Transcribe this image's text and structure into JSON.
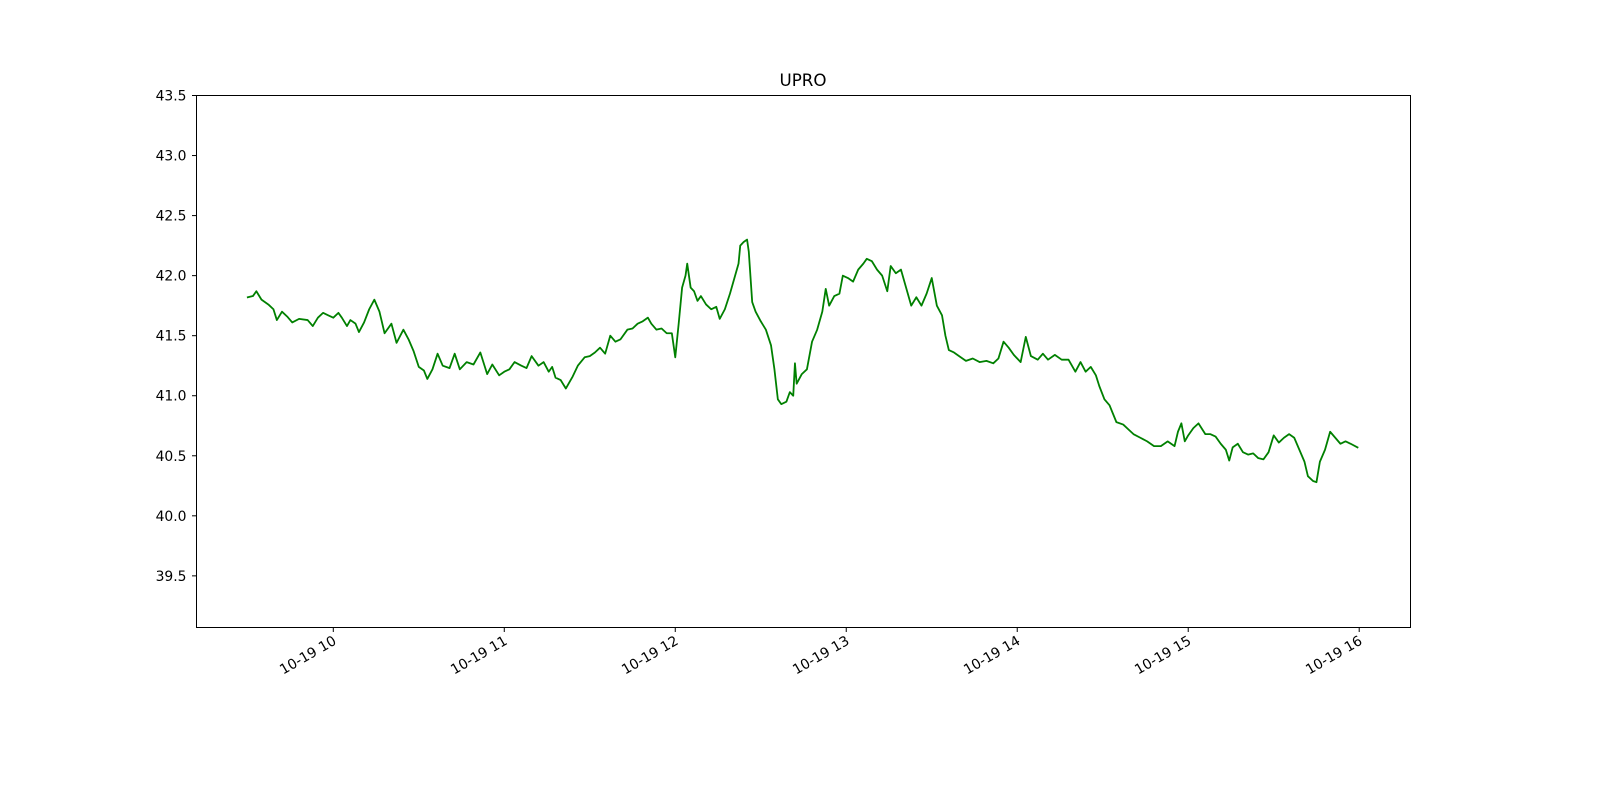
{
  "chart_data": {
    "type": "line",
    "title": "UPRO",
    "xlabel": "",
    "ylabel": "",
    "grid": false,
    "legend": "none",
    "line_color": "#008000",
    "xlim": [
      9.2,
      16.3
    ],
    "ylim": [
      39.07,
      43.5
    ],
    "x_ticks": [
      {
        "value": 10,
        "label": "10-19 10"
      },
      {
        "value": 11,
        "label": "10-19 11"
      },
      {
        "value": 12,
        "label": "10-19 12"
      },
      {
        "value": 13,
        "label": "10-19 13"
      },
      {
        "value": 14,
        "label": "10-19 14"
      },
      {
        "value": 15,
        "label": "10-19 15"
      },
      {
        "value": 16,
        "label": "10-19 16"
      }
    ],
    "y_ticks": [
      {
        "value": 39.5,
        "label": "39.5"
      },
      {
        "value": 40.0,
        "label": "40.0"
      },
      {
        "value": 40.5,
        "label": "40.5"
      },
      {
        "value": 41.0,
        "label": "41.0"
      },
      {
        "value": 41.5,
        "label": "41.5"
      },
      {
        "value": 42.0,
        "label": "42.0"
      },
      {
        "value": 42.5,
        "label": "42.5"
      },
      {
        "value": 43.0,
        "label": "43.0"
      },
      {
        "value": 43.5,
        "label": "43.5"
      }
    ],
    "series": [
      {
        "points": [
          [
            9.5,
            41.82
          ],
          [
            9.53,
            41.83
          ],
          [
            9.55,
            41.87
          ],
          [
            9.58,
            41.8
          ],
          [
            9.62,
            41.76
          ],
          [
            9.65,
            41.72
          ],
          [
            9.67,
            41.63
          ],
          [
            9.7,
            41.7
          ],
          [
            9.73,
            41.66
          ],
          [
            9.76,
            41.61
          ],
          [
            9.8,
            41.64
          ],
          [
            9.85,
            41.63
          ],
          [
            9.88,
            41.58
          ],
          [
            9.91,
            41.65
          ],
          [
            9.94,
            41.69
          ],
          [
            9.97,
            41.67
          ],
          [
            10.0,
            41.65
          ],
          [
            10.03,
            41.69
          ],
          [
            10.05,
            41.65
          ],
          [
            10.08,
            41.58
          ],
          [
            10.1,
            41.63
          ],
          [
            10.13,
            41.6
          ],
          [
            10.15,
            41.53
          ],
          [
            10.18,
            41.61
          ],
          [
            10.21,
            41.72
          ],
          [
            10.24,
            41.8
          ],
          [
            10.27,
            41.7
          ],
          [
            10.3,
            41.52
          ],
          [
            10.34,
            41.6
          ],
          [
            10.37,
            41.44
          ],
          [
            10.41,
            41.55
          ],
          [
            10.44,
            41.47
          ],
          [
            10.47,
            41.37
          ],
          [
            10.5,
            41.24
          ],
          [
            10.53,
            41.21
          ],
          [
            10.55,
            41.14
          ],
          [
            10.58,
            41.22
          ],
          [
            10.61,
            41.35
          ],
          [
            10.64,
            41.25
          ],
          [
            10.68,
            41.23
          ],
          [
            10.71,
            41.35
          ],
          [
            10.74,
            41.22
          ],
          [
            10.78,
            41.28
          ],
          [
            10.82,
            41.26
          ],
          [
            10.86,
            41.36
          ],
          [
            10.9,
            41.18
          ],
          [
            10.93,
            41.26
          ],
          [
            10.97,
            41.17
          ],
          [
            11.0,
            41.2
          ],
          [
            11.03,
            41.22
          ],
          [
            11.06,
            41.28
          ],
          [
            11.1,
            41.25
          ],
          [
            11.13,
            41.23
          ],
          [
            11.16,
            41.33
          ],
          [
            11.2,
            41.25
          ],
          [
            11.23,
            41.28
          ],
          [
            11.26,
            41.2
          ],
          [
            11.28,
            41.24
          ],
          [
            11.3,
            41.15
          ],
          [
            11.33,
            41.13
          ],
          [
            11.36,
            41.06
          ],
          [
            11.4,
            41.16
          ],
          [
            11.43,
            41.25
          ],
          [
            11.47,
            41.32
          ],
          [
            11.5,
            41.33
          ],
          [
            11.53,
            41.36
          ],
          [
            11.56,
            41.4
          ],
          [
            11.59,
            41.35
          ],
          [
            11.62,
            41.5
          ],
          [
            11.65,
            41.45
          ],
          [
            11.68,
            41.47
          ],
          [
            11.72,
            41.55
          ],
          [
            11.75,
            41.56
          ],
          [
            11.78,
            41.6
          ],
          [
            11.81,
            41.62
          ],
          [
            11.84,
            41.65
          ],
          [
            11.86,
            41.6
          ],
          [
            11.89,
            41.55
          ],
          [
            11.92,
            41.56
          ],
          [
            11.95,
            41.52
          ],
          [
            11.98,
            41.52
          ],
          [
            12.0,
            41.32
          ],
          [
            12.02,
            41.6
          ],
          [
            12.04,
            41.9
          ],
          [
            12.06,
            42.0
          ],
          [
            12.07,
            42.1
          ],
          [
            12.09,
            41.9
          ],
          [
            12.11,
            41.87
          ],
          [
            12.13,
            41.79
          ],
          [
            12.15,
            41.83
          ],
          [
            12.18,
            41.76
          ],
          [
            12.21,
            41.72
          ],
          [
            12.24,
            41.74
          ],
          [
            12.26,
            41.64
          ],
          [
            12.29,
            41.72
          ],
          [
            12.32,
            41.85
          ],
          [
            12.35,
            42.0
          ],
          [
            12.37,
            42.1
          ],
          [
            12.38,
            42.25
          ],
          [
            12.4,
            42.28
          ],
          [
            12.42,
            42.3
          ],
          [
            12.43,
            42.2
          ],
          [
            12.45,
            41.78
          ],
          [
            12.47,
            41.7
          ],
          [
            12.5,
            41.62
          ],
          [
            12.53,
            41.55
          ],
          [
            12.56,
            41.42
          ],
          [
            12.58,
            41.22
          ],
          [
            12.6,
            40.97
          ],
          [
            12.62,
            40.93
          ],
          [
            12.65,
            40.95
          ],
          [
            12.67,
            41.03
          ],
          [
            12.69,
            41.0
          ],
          [
            12.7,
            41.27
          ],
          [
            12.71,
            41.1
          ],
          [
            12.74,
            41.18
          ],
          [
            12.77,
            41.22
          ],
          [
            12.8,
            41.45
          ],
          [
            12.83,
            41.55
          ],
          [
            12.86,
            41.7
          ],
          [
            12.88,
            41.89
          ],
          [
            12.9,
            41.75
          ],
          [
            12.93,
            41.83
          ],
          [
            12.96,
            41.85
          ],
          [
            12.98,
            42.0
          ],
          [
            13.01,
            41.98
          ],
          [
            13.04,
            41.95
          ],
          [
            13.07,
            42.05
          ],
          [
            13.1,
            42.1
          ],
          [
            13.12,
            42.14
          ],
          [
            13.15,
            42.12
          ],
          [
            13.18,
            42.05
          ],
          [
            13.21,
            42.0
          ],
          [
            13.24,
            41.87
          ],
          [
            13.26,
            42.08
          ],
          [
            13.29,
            42.02
          ],
          [
            13.32,
            42.05
          ],
          [
            13.35,
            41.9
          ],
          [
            13.38,
            41.75
          ],
          [
            13.41,
            41.82
          ],
          [
            13.44,
            41.75
          ],
          [
            13.47,
            41.85
          ],
          [
            13.5,
            41.98
          ],
          [
            13.53,
            41.75
          ],
          [
            13.56,
            41.67
          ],
          [
            13.58,
            41.5
          ],
          [
            13.6,
            41.38
          ],
          [
            13.63,
            41.36
          ],
          [
            13.66,
            41.33
          ],
          [
            13.7,
            41.29
          ],
          [
            13.74,
            41.31
          ],
          [
            13.78,
            41.28
          ],
          [
            13.82,
            41.29
          ],
          [
            13.86,
            41.27
          ],
          [
            13.89,
            41.31
          ],
          [
            13.92,
            41.45
          ],
          [
            13.95,
            41.4
          ],
          [
            13.98,
            41.34
          ],
          [
            14.02,
            41.28
          ],
          [
            14.05,
            41.49
          ],
          [
            14.08,
            41.33
          ],
          [
            14.12,
            41.3
          ],
          [
            14.15,
            41.35
          ],
          [
            14.18,
            41.3
          ],
          [
            14.22,
            41.34
          ],
          [
            14.26,
            41.3
          ],
          [
            14.3,
            41.3
          ],
          [
            14.34,
            41.2
          ],
          [
            14.37,
            41.28
          ],
          [
            14.4,
            41.2
          ],
          [
            14.43,
            41.24
          ],
          [
            14.46,
            41.17
          ],
          [
            14.48,
            41.08
          ],
          [
            14.51,
            40.97
          ],
          [
            14.54,
            40.92
          ],
          [
            14.56,
            40.85
          ],
          [
            14.58,
            40.78
          ],
          [
            14.62,
            40.76
          ],
          [
            14.65,
            40.72
          ],
          [
            14.68,
            40.68
          ],
          [
            14.72,
            40.65
          ],
          [
            14.76,
            40.62
          ],
          [
            14.8,
            40.58
          ],
          [
            14.84,
            40.58
          ],
          [
            14.88,
            40.62
          ],
          [
            14.92,
            40.58
          ],
          [
            14.94,
            40.7
          ],
          [
            14.96,
            40.77
          ],
          [
            14.98,
            40.62
          ],
          [
            15.0,
            40.67
          ],
          [
            15.03,
            40.73
          ],
          [
            15.06,
            40.77
          ],
          [
            15.1,
            40.68
          ],
          [
            15.13,
            40.68
          ],
          [
            15.16,
            40.66
          ],
          [
            15.19,
            40.6
          ],
          [
            15.22,
            40.55
          ],
          [
            15.24,
            40.46
          ],
          [
            15.26,
            40.57
          ],
          [
            15.29,
            40.6
          ],
          [
            15.32,
            40.53
          ],
          [
            15.35,
            40.51
          ],
          [
            15.38,
            40.52
          ],
          [
            15.41,
            40.48
          ],
          [
            15.44,
            40.47
          ],
          [
            15.47,
            40.53
          ],
          [
            15.5,
            40.67
          ],
          [
            15.53,
            40.61
          ],
          [
            15.56,
            40.65
          ],
          [
            15.59,
            40.68
          ],
          [
            15.62,
            40.65
          ],
          [
            15.65,
            40.55
          ],
          [
            15.68,
            40.45
          ],
          [
            15.7,
            40.33
          ],
          [
            15.73,
            40.29
          ],
          [
            15.75,
            40.28
          ],
          [
            15.77,
            40.45
          ],
          [
            15.8,
            40.55
          ],
          [
            15.83,
            40.7
          ],
          [
            15.86,
            40.65
          ],
          [
            15.89,
            40.6
          ],
          [
            15.92,
            40.62
          ],
          [
            15.95,
            40.6
          ],
          [
            15.99,
            40.57
          ]
        ]
      }
    ]
  }
}
